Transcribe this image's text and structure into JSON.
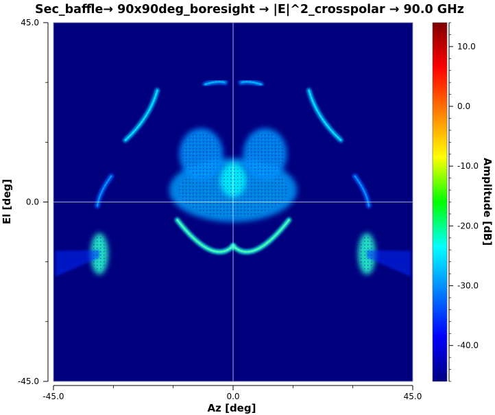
{
  "chart_data": {
    "type": "heatmap",
    "title": "Sec_baffle→ 90x90deg_boresight → |E|^2_crosspolar → 90.0 GHz",
    "xlabel": "Az [deg]",
    "ylabel": "El [deg]",
    "xlim": [
      -45.0,
      45.0
    ],
    "ylim": [
      -45.0,
      45.0
    ],
    "x_ticks": [
      "-45.0",
      "0.0",
      "45.0"
    ],
    "y_ticks": [
      "45.0",
      "0.0",
      "-45.0"
    ],
    "x_tick_values": [
      -45.0,
      0.0,
      45.0
    ],
    "y_tick_values": [
      45.0,
      0.0,
      -45.0
    ],
    "colorbar": {
      "label": "Amplitude [dB]",
      "range": [
        -46.0,
        14.0
      ],
      "tick_values": [
        10.0,
        0.0,
        -10.0,
        -20.0,
        -30.0,
        -40.0
      ],
      "tick_labels": [
        "10.0",
        "0.0",
        "-10.0",
        "-20.0",
        "-30.0",
        "-40.0"
      ],
      "colormap": "jet"
    },
    "background_level_db": -46.0,
    "features": [
      {
        "shape": "patch",
        "az": 0.0,
        "el": 3.0,
        "level_db": -29.0,
        "description": "central broad sidelobe region"
      },
      {
        "shape": "patch",
        "az": 0.0,
        "el": 5.5,
        "level_db": -24.0,
        "description": "central core"
      },
      {
        "shape": "patch",
        "az": -8.0,
        "el": 12.0,
        "level_db": -30.0,
        "description": "upper-left lobe"
      },
      {
        "shape": "patch",
        "az": 8.0,
        "el": 12.0,
        "level_db": -30.0,
        "description": "upper-right lobe"
      },
      {
        "shape": "arc",
        "az_from": -14.0,
        "el_from": -4.5,
        "az_ctrl": -5.0,
        "el_ctrl": -16.0,
        "az_to": 0.0,
        "el_to": -11.0,
        "level_db": -22.0
      },
      {
        "shape": "arc",
        "az_from": 14.0,
        "el_from": -4.5,
        "az_ctrl": 5.0,
        "el_ctrl": -16.0,
        "az_to": 0.0,
        "el_to": -11.0,
        "level_db": -22.0
      },
      {
        "shape": "patch",
        "az": -33.5,
        "el": -13.0,
        "level_db": -21.0,
        "description": "left side lobe"
      },
      {
        "shape": "patch",
        "az": 33.5,
        "el": -13.0,
        "level_db": -21.0,
        "description": "right side lobe"
      },
      {
        "shape": "arc",
        "az_from": -19.0,
        "el_from": 28.0,
        "az_ctrl": -21.0,
        "el_ctrl": 21.0,
        "az_to": -27.0,
        "el_to": 15.5,
        "level_db": -28.0
      },
      {
        "shape": "arc",
        "az_from": 19.0,
        "el_from": 28.0,
        "az_ctrl": 21.0,
        "el_ctrl": 21.0,
        "az_to": 27.0,
        "el_to": 15.5,
        "level_db": -28.0
      },
      {
        "shape": "arc",
        "az_from": -7.0,
        "el_from": 29.5,
        "az_ctrl": -4.0,
        "el_ctrl": 30.5,
        "az_to": -2.0,
        "el_to": 30.0,
        "level_db": -31.0
      },
      {
        "shape": "arc",
        "az_from": 7.0,
        "el_from": 29.5,
        "az_ctrl": 4.0,
        "el_ctrl": 30.5,
        "az_to": 2.0,
        "el_to": 30.0,
        "level_db": -31.0
      },
      {
        "shape": "arc",
        "az_from": -30.5,
        "el_from": 6.5,
        "az_ctrl": -33.5,
        "el_ctrl": 2.5,
        "az_to": -34.0,
        "el_to": -1.0,
        "level_db": -33.0
      },
      {
        "shape": "arc",
        "az_from": 30.5,
        "el_from": 6.5,
        "az_ctrl": 33.5,
        "el_ctrl": 2.5,
        "az_to": 34.0,
        "el_to": -1.0,
        "level_db": -33.0
      },
      {
        "shape": "fan",
        "az_from": -44.5,
        "el_from": -15.5,
        "az_to": -33.5,
        "el_to": -13.0,
        "level_db": -36.0
      },
      {
        "shape": "fan",
        "az_from": 44.5,
        "el_from": -15.5,
        "az_to": 33.5,
        "el_to": -13.0,
        "level_db": -36.0
      }
    ]
  }
}
